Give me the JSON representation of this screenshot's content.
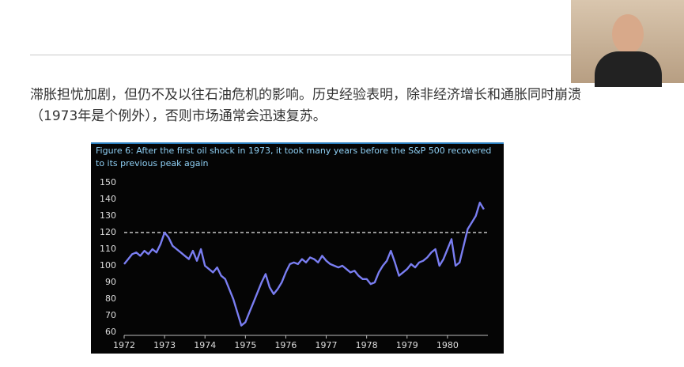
{
  "slide": {
    "text_lines": [
      "滞胀担忧加剧，但仍不及以往石油危机的影响。历史经验表明，除非经济增长和通胀同时崩溃",
      "（1973年是个例外），否则市场通常会迅速复苏。"
    ]
  },
  "chart_data": {
    "type": "line",
    "title": "Figure 6: After the first oil shock in 1973, it took many years before the S&P 500 recovered to its previous peak again",
    "x": [
      1972.0,
      1972.1,
      1972.2,
      1972.3,
      1972.4,
      1972.5,
      1972.6,
      1972.7,
      1972.8,
      1972.9,
      1973.0,
      1973.1,
      1973.2,
      1973.3,
      1973.4,
      1973.5,
      1973.6,
      1973.7,
      1973.8,
      1973.9,
      1974.0,
      1974.1,
      1974.2,
      1974.3,
      1974.4,
      1974.5,
      1974.6,
      1974.7,
      1974.8,
      1974.9,
      1975.0,
      1975.1,
      1975.2,
      1975.3,
      1975.4,
      1975.5,
      1975.6,
      1975.7,
      1975.8,
      1975.9,
      1976.0,
      1976.1,
      1976.2,
      1976.3,
      1976.4,
      1976.5,
      1976.6,
      1976.7,
      1976.8,
      1976.9,
      1977.0,
      1977.1,
      1977.2,
      1977.3,
      1977.4,
      1977.5,
      1977.6,
      1977.7,
      1977.8,
      1977.9,
      1978.0,
      1978.1,
      1978.2,
      1978.3,
      1978.4,
      1978.5,
      1978.6,
      1978.7,
      1978.8,
      1978.9,
      1979.0,
      1979.1,
      1979.2,
      1979.3,
      1979.4,
      1979.5,
      1979.6,
      1979.7,
      1979.8,
      1979.9,
      1980.0,
      1980.1,
      1980.2,
      1980.3,
      1980.4,
      1980.5,
      1980.6,
      1980.7,
      1980.8,
      1980.9
    ],
    "values": [
      101,
      104,
      107,
      108,
      106,
      109,
      107,
      110,
      108,
      113,
      120,
      117,
      112,
      110,
      108,
      106,
      104,
      109,
      103,
      110,
      100,
      98,
      96,
      99,
      94,
      92,
      86,
      80,
      72,
      64,
      66,
      72,
      78,
      84,
      90,
      95,
      87,
      83,
      86,
      90,
      96,
      101,
      102,
      101,
      104,
      102,
      105,
      104,
      102,
      106,
      103,
      101,
      100,
      99,
      100,
      98,
      96,
      97,
      94,
      92,
      92,
      89,
      90,
      96,
      100,
      103,
      109,
      102,
      94,
      96,
      98,
      101,
      99,
      102,
      103,
      105,
      108,
      110,
      100,
      104,
      110,
      116,
      100,
      102,
      112,
      122,
      126,
      130,
      138,
      134
    ],
    "color": "#7a7ef2",
    "hline": 120,
    "xlim": [
      1972,
      1981
    ],
    "xticks": [
      1972,
      1973,
      1974,
      1975,
      1976,
      1977,
      1978,
      1979,
      1980
    ],
    "ylim": [
      60,
      150
    ],
    "yticks": [
      60,
      70,
      80,
      90,
      100,
      110,
      120,
      130,
      140,
      150
    ]
  }
}
